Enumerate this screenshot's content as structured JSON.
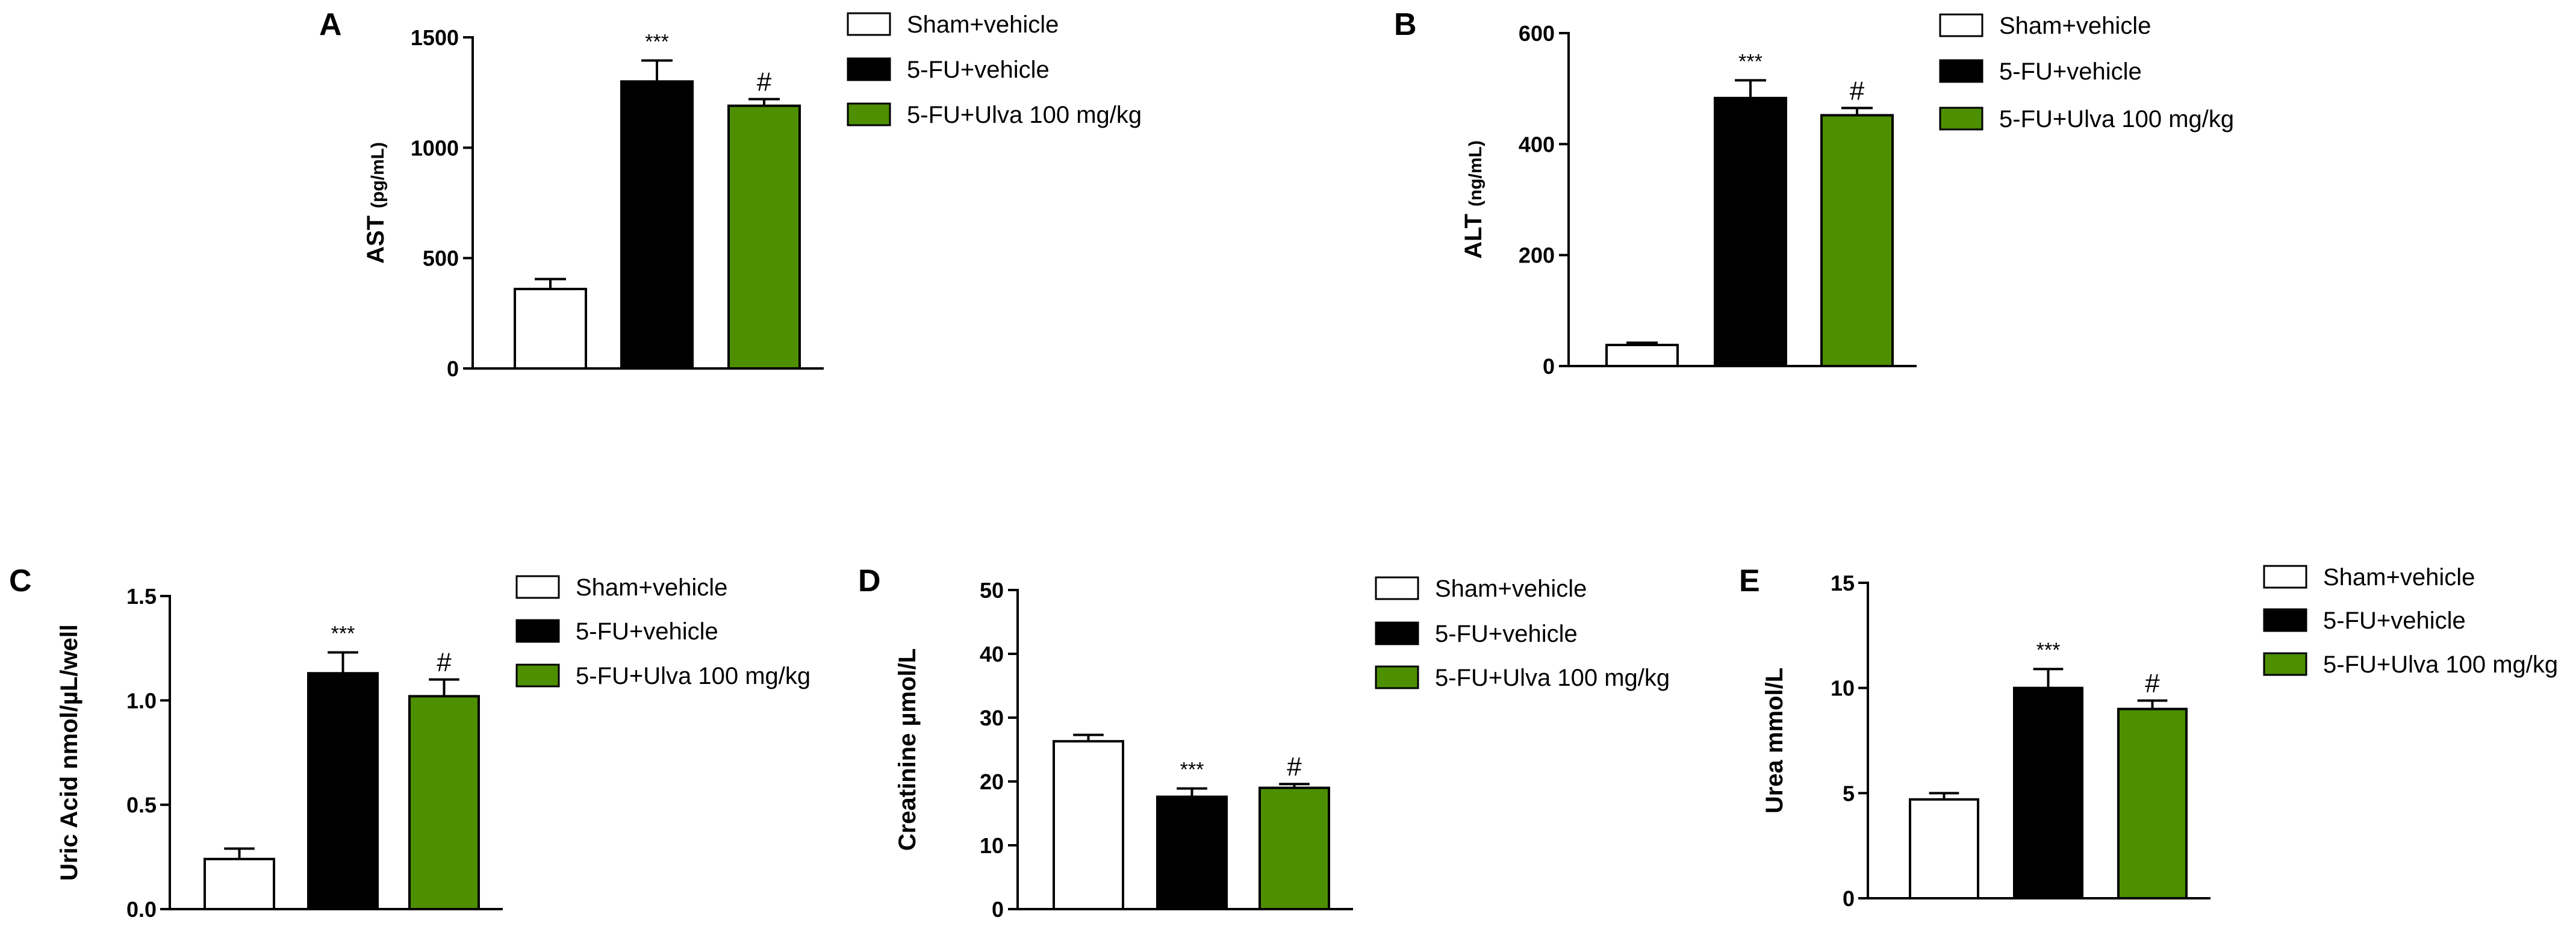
{
  "colors": {
    "sham": "#ffffff",
    "fu": "#000000",
    "ulva": "#4e8f00",
    "axis": "#000000"
  },
  "legend": {
    "entries": [
      "Sham+vehicle",
      "5-FU+vehicle",
      "5-FU+Ulva 100 mg/kg"
    ]
  },
  "chart_data": [
    {
      "panel": "A",
      "type": "bar",
      "ylabel": "AST",
      "yunit": "(pg/mL)",
      "ylim": [
        0,
        1500
      ],
      "yticks": [
        "0",
        "500",
        "1000",
        "1500"
      ],
      "categories": [
        "Sham+vehicle",
        "5-FU+vehicle",
        "5-FU+Ulva 100 mg/kg"
      ],
      "values": [
        360,
        1300,
        1190
      ],
      "errors": [
        45,
        95,
        30
      ],
      "significance": [
        "",
        "***",
        "#"
      ]
    },
    {
      "panel": "B",
      "type": "bar",
      "ylabel": "ALT",
      "yunit": "(ng/mL)",
      "ylim": [
        0,
        600
      ],
      "yticks": [
        "0",
        "200",
        "400",
        "600"
      ],
      "categories": [
        "Sham+vehicle",
        "5-FU+vehicle",
        "5-FU+Ulva 100 mg/kg"
      ],
      "values": [
        38,
        483,
        452
      ],
      "errors": [
        4,
        32,
        13
      ],
      "significance": [
        "",
        "***",
        "#"
      ]
    },
    {
      "panel": "C",
      "type": "bar",
      "ylabel": "Uric Acid nmol/µL/well",
      "yunit": "",
      "ylim": [
        0,
        1.5
      ],
      "yticks": [
        "0.0",
        "0.5",
        "1.0",
        "1.5"
      ],
      "categories": [
        "Sham+vehicle",
        "5-FU+vehicle",
        "5-FU+Ulva 100 mg/kg"
      ],
      "values": [
        0.24,
        1.13,
        1.02
      ],
      "errors": [
        0.05,
        0.1,
        0.08
      ],
      "significance": [
        "",
        "***",
        "#"
      ]
    },
    {
      "panel": "D",
      "type": "bar",
      "ylabel": "Creatinine µmol/L",
      "yunit": "",
      "ylim": [
        0,
        50
      ],
      "yticks": [
        "0",
        "10",
        "20",
        "30",
        "40",
        "50"
      ],
      "categories": [
        "Sham+vehicle",
        "5-FU+vehicle",
        "5-FU+Ulva 100 mg/kg"
      ],
      "values": [
        26.3,
        17.6,
        19.0
      ],
      "errors": [
        1.0,
        1.3,
        0.6
      ],
      "significance": [
        "",
        "***",
        "#"
      ]
    },
    {
      "panel": "E",
      "type": "bar",
      "ylabel": "Urea mmol/L",
      "yunit": "",
      "ylim": [
        0,
        15
      ],
      "yticks": [
        "0",
        "5",
        "10",
        "15"
      ],
      "categories": [
        "Sham+vehicle",
        "5-FU+vehicle",
        "5-FU+Ulva 100 mg/kg"
      ],
      "values": [
        4.7,
        10.0,
        9.0
      ],
      "errors": [
        0.3,
        0.9,
        0.4
      ],
      "significance": [
        "",
        "***",
        "#"
      ]
    }
  ]
}
